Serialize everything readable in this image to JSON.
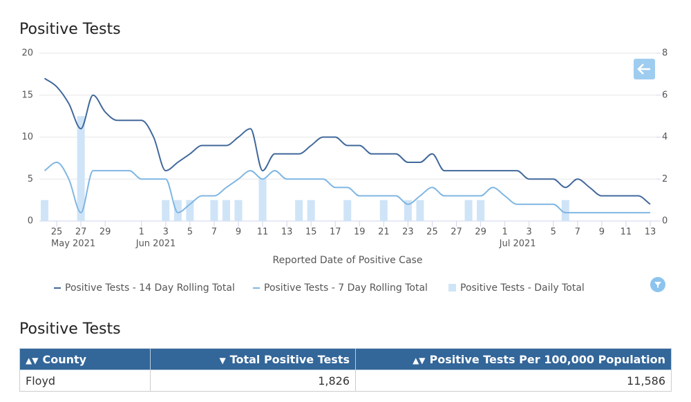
{
  "chart_data": {
    "type": "combo",
    "title": "Positive Tests",
    "x_label": "Reported Date of Positive Case",
    "x": [
      "2021-05-24",
      "2021-05-25",
      "2021-05-26",
      "2021-05-27",
      "2021-05-28",
      "2021-05-29",
      "2021-05-30",
      "2021-05-31",
      "2021-06-01",
      "2021-06-02",
      "2021-06-03",
      "2021-06-04",
      "2021-06-05",
      "2021-06-06",
      "2021-06-07",
      "2021-06-08",
      "2021-06-09",
      "2021-06-10",
      "2021-06-11",
      "2021-06-12",
      "2021-06-13",
      "2021-06-14",
      "2021-06-15",
      "2021-06-16",
      "2021-06-17",
      "2021-06-18",
      "2021-06-19",
      "2021-06-20",
      "2021-06-21",
      "2021-06-22",
      "2021-06-23",
      "2021-06-24",
      "2021-06-25",
      "2021-06-26",
      "2021-06-27",
      "2021-06-28",
      "2021-06-29",
      "2021-06-30",
      "2021-07-01",
      "2021-07-02",
      "2021-07-03",
      "2021-07-04",
      "2021-07-05",
      "2021-07-06",
      "2021-07-07",
      "2021-07-08",
      "2021-07-09",
      "2021-07-10",
      "2021-07-11",
      "2021-07-12",
      "2021-07-13"
    ],
    "series": [
      {
        "name": "Positive Tests - 14 Day Rolling Total",
        "type": "line",
        "color": "#41689b",
        "values": [
          17,
          16,
          14,
          11,
          15,
          13,
          12,
          12,
          12,
          10,
          6,
          7,
          8,
          9,
          9,
          9,
          10,
          11,
          6,
          8,
          8,
          8,
          9,
          10,
          10,
          9,
          9,
          8,
          8,
          8,
          7,
          7,
          8,
          6,
          6,
          6,
          6,
          6,
          6,
          6,
          5,
          5,
          5,
          4,
          5,
          4,
          3,
          3,
          3,
          3,
          2
        ]
      },
      {
        "name": "Positive Tests - 7 Day Rolling Total",
        "type": "line",
        "color": "#7fb6e3",
        "values": [
          6,
          7,
          5,
          1,
          6,
          6,
          6,
          6,
          5,
          5,
          5,
          1,
          2,
          3,
          3,
          4,
          5,
          6,
          5,
          6,
          5,
          5,
          5,
          5,
          4,
          4,
          3,
          3,
          3,
          3,
          2,
          3,
          4,
          3,
          3,
          3,
          3,
          4,
          3,
          2,
          2,
          2,
          2,
          1,
          1,
          1,
          1,
          1,
          1,
          1,
          1
        ]
      },
      {
        "name": "Positive Tests - Daily Total",
        "type": "bar",
        "axis": "y2",
        "color": "#cfe4f7",
        "values": [
          1,
          0,
          0,
          5,
          0,
          0,
          0,
          0,
          0,
          0,
          1,
          1,
          1,
          0,
          1,
          1,
          1,
          0,
          2,
          0,
          0,
          1,
          1,
          0,
          0,
          1,
          0,
          0,
          1,
          0,
          1,
          1,
          0,
          0,
          0,
          1,
          1,
          0,
          0,
          0,
          0,
          0,
          0,
          1,
          0,
          0,
          0,
          0,
          0,
          0,
          0
        ]
      }
    ],
    "xticks": [
      {
        "value": "2021-05-25",
        "label": "25"
      },
      {
        "value": "2021-05-27",
        "label": "27"
      },
      {
        "value": "2021-05-29",
        "label": "29"
      },
      {
        "value": "2021-06-01",
        "label": "1"
      },
      {
        "value": "2021-06-03",
        "label": "3"
      },
      {
        "value": "2021-06-05",
        "label": "5"
      },
      {
        "value": "2021-06-07",
        "label": "7"
      },
      {
        "value": "2021-06-09",
        "label": "9"
      },
      {
        "value": "2021-06-11",
        "label": "11"
      },
      {
        "value": "2021-06-13",
        "label": "13"
      },
      {
        "value": "2021-06-15",
        "label": "15"
      },
      {
        "value": "2021-06-17",
        "label": "17"
      },
      {
        "value": "2021-06-19",
        "label": "19"
      },
      {
        "value": "2021-06-21",
        "label": "21"
      },
      {
        "value": "2021-06-23",
        "label": "23"
      },
      {
        "value": "2021-06-25",
        "label": "25"
      },
      {
        "value": "2021-06-27",
        "label": "27"
      },
      {
        "value": "2021-06-29",
        "label": "29"
      },
      {
        "value": "2021-07-01",
        "label": "1"
      },
      {
        "value": "2021-07-03",
        "label": "3"
      },
      {
        "value": "2021-07-05",
        "label": "5"
      },
      {
        "value": "2021-07-07",
        "label": "7"
      },
      {
        "value": "2021-07-09",
        "label": "9"
      },
      {
        "value": "2021-07-11",
        "label": "11"
      },
      {
        "value": "2021-07-13",
        "label": "13"
      }
    ],
    "xticks_month": [
      {
        "value": "2021-05-25",
        "label": "May 2021"
      },
      {
        "value": "2021-06-01",
        "label": "Jun 2021"
      },
      {
        "value": "2021-07-01",
        "label": "Jul 2021"
      }
    ],
    "ylim": [
      0,
      20
    ],
    "yticks": [
      0,
      5,
      10,
      15,
      20
    ],
    "y2lim": [
      0,
      8
    ],
    "y2ticks": [
      0,
      2,
      4,
      6,
      8
    ],
    "grid": true
  },
  "table": {
    "title": "Positive Tests",
    "columns": [
      "County",
      "Total Positive Tests",
      "Positive Tests Per 100,000 Population"
    ],
    "rows": [
      [
        "Floyd",
        "1,826",
        "11,586"
      ]
    ]
  }
}
